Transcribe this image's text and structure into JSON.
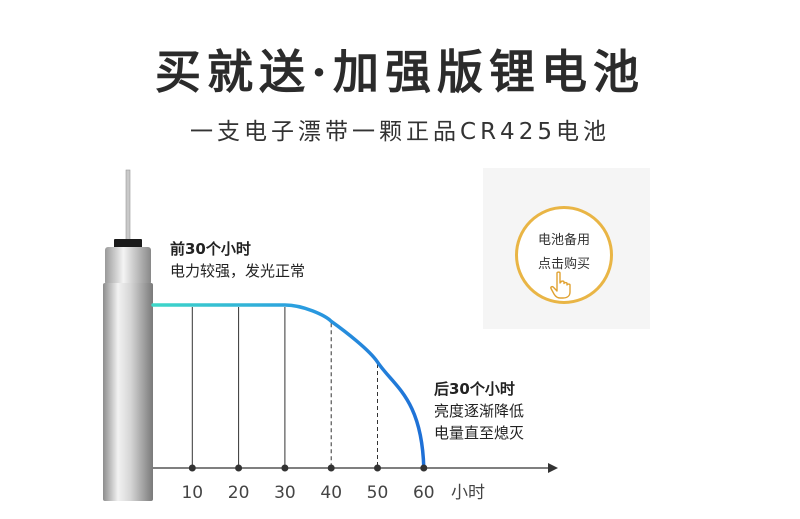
{
  "header": {
    "title": "买就送·加强版锂电池",
    "subtitle": "一支电子漂带一颗正品CR425电池"
  },
  "callouts": {
    "early": {
      "heading": "前30个小时",
      "body": "电力较强，发光正常"
    },
    "late": {
      "heading": "后30个小时",
      "line1": "亮度逐渐降低",
      "line2": "电量直至熄灭"
    }
  },
  "buy_button": {
    "line1": "电池备用",
    "line2": "点击购买",
    "accent_color": "#e9b545",
    "icon": "pointing-hand-icon"
  },
  "chart_data": {
    "type": "line",
    "x": [
      0,
      10,
      20,
      30,
      40,
      50,
      60
    ],
    "tick_labels": [
      "10",
      "20",
      "30",
      "40",
      "50",
      "60"
    ],
    "x_unit_label": "小时",
    "series": [
      {
        "values": [
          1,
          1,
          1,
          1,
          0.9,
          0.65,
          0
        ]
      }
    ],
    "xlim": [
      0,
      64
    ],
    "ylim": [
      0,
      1
    ],
    "colors": {
      "start": "#3ed8c8",
      "end": "#1e6fd6"
    }
  }
}
